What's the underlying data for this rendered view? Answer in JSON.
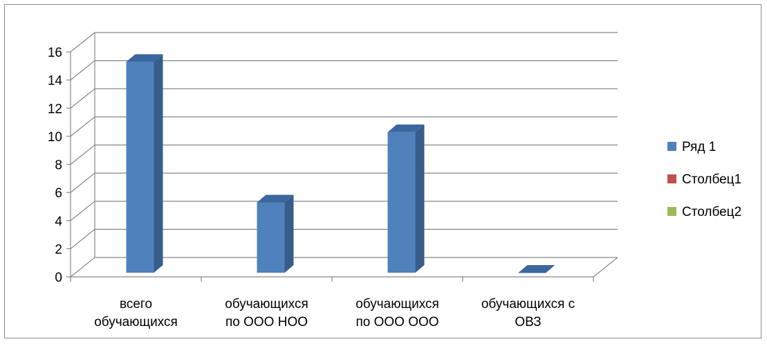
{
  "chart_data": {
    "type": "bar",
    "title": "",
    "xlabel": "",
    "ylabel": "",
    "ylim": [
      0,
      16
    ],
    "yticks": [
      0,
      2,
      4,
      6,
      8,
      10,
      12,
      14,
      16
    ],
    "y_tick_labels": [
      "0",
      "2",
      "4",
      "6",
      "8",
      "10",
      "12",
      "14",
      "16"
    ],
    "categories": [
      [
        "всего",
        "обучающихся"
      ],
      [
        "обучающихся",
        "по ООО НОО"
      ],
      [
        "обучающихся",
        "по ООО ООО"
      ],
      [
        "обучающихся с",
        "ОВЗ"
      ]
    ],
    "series": [
      {
        "name": "Ряд 1",
        "values": [
          15,
          5,
          10,
          0
        ],
        "color": "#4f81bd"
      },
      {
        "name": "Столбец1",
        "values": [
          null,
          null,
          null,
          null
        ],
        "color": "#c0504d"
      },
      {
        "name": "Столбец2",
        "values": [
          null,
          null,
          null,
          null
        ],
        "color": "#9bbb59"
      }
    ],
    "grid": true,
    "style": "3d-column",
    "legend_position": "right"
  }
}
